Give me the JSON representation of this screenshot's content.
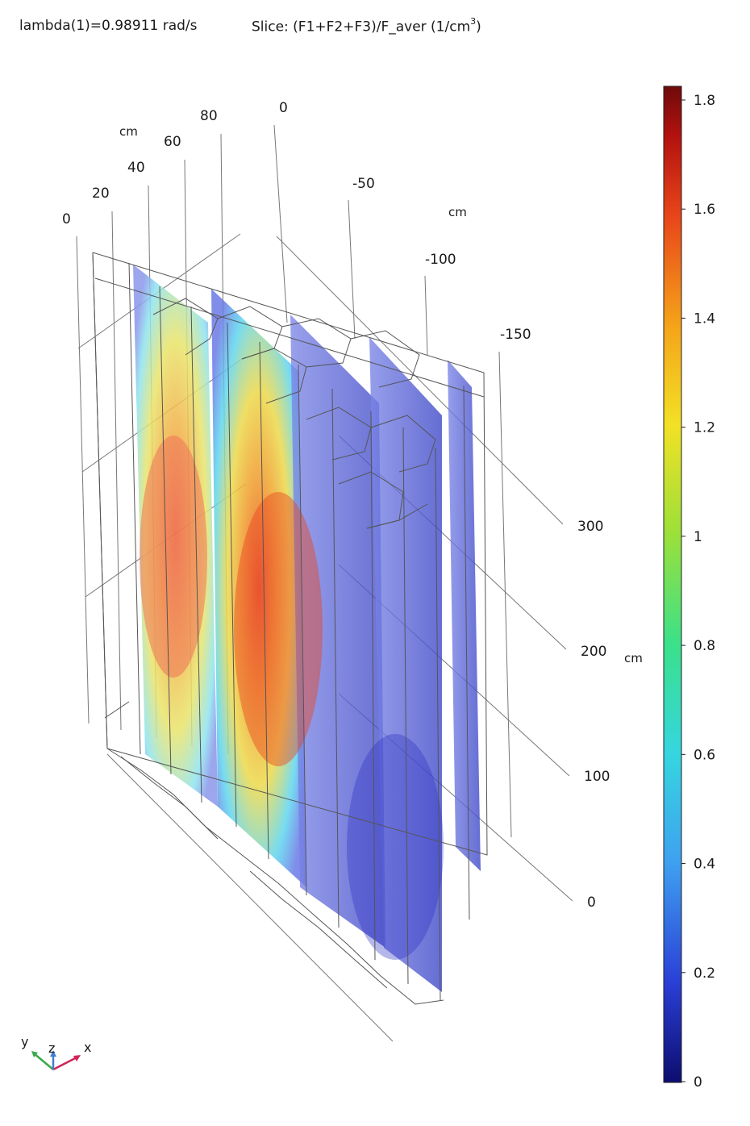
{
  "header": {
    "eigenvalue": "lambda(1)=0.98911 rad/s",
    "slice_prefix": "Slice: (F1+F2+F3)/F_aver (1/cm",
    "slice_exp": "3",
    "slice_suffix": ")"
  },
  "axes": {
    "x_ticks": [
      "0",
      "20",
      "40",
      "60",
      "80"
    ],
    "x_unit": "cm",
    "y_ticks": [
      "0",
      "-50",
      "-100",
      "-150"
    ],
    "y_unit": "cm",
    "z_ticks": [
      "300",
      "200",
      "100",
      "0"
    ],
    "z_unit": "cm"
  },
  "colorbar": {
    "ticks": [
      "1.8",
      "1.6",
      "1.4",
      "1.2",
      "1",
      "0.8",
      "0.6",
      "0.4",
      "0.2",
      "0"
    ],
    "colormap": "rainbow",
    "colors": [
      "#0d0d6e",
      "#2a3fd6",
      "#3fa0f0",
      "#35d6e0",
      "#3be08a",
      "#9be03a",
      "#f2e125",
      "#f5a31a",
      "#e8451a",
      "#b3120f",
      "#6e0a0a"
    ]
  },
  "triad": {
    "x": "x",
    "y": "y",
    "z": "z"
  }
}
